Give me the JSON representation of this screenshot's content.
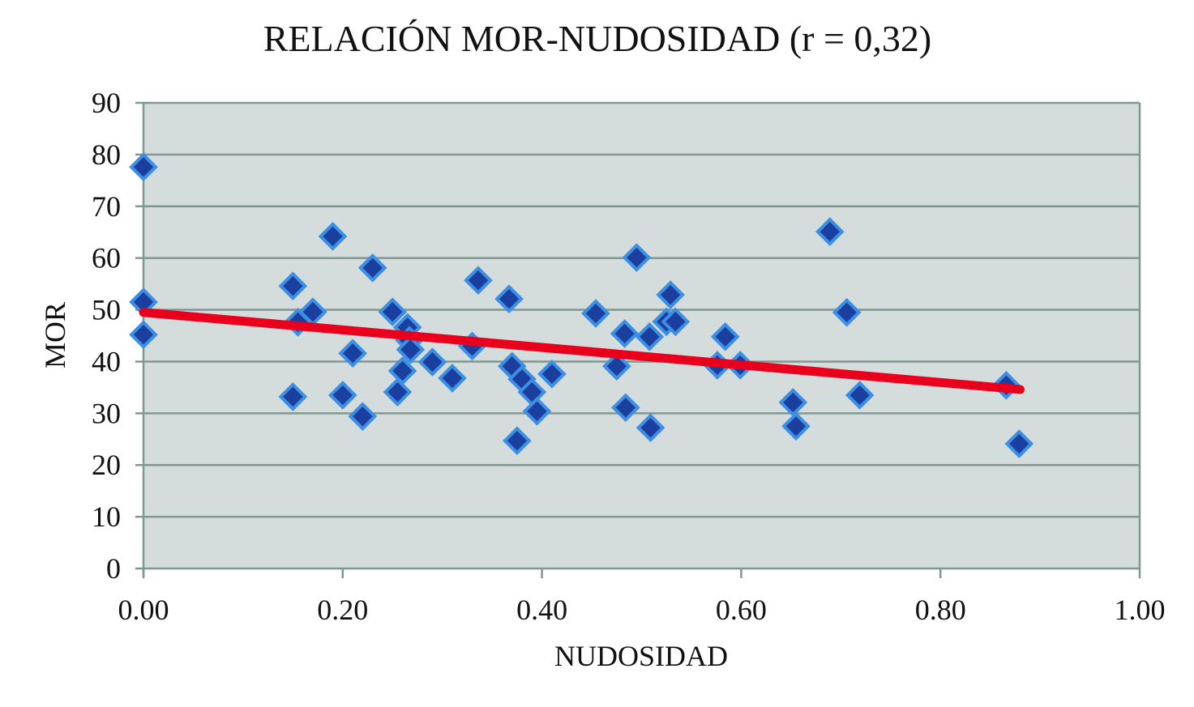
{
  "chart_data": {
    "type": "scatter",
    "title": "RELACIÓN MOR-NUDOSIDAD (r = 0,32)",
    "xlabel": "NUDOSIDAD",
    "ylabel": "MOR",
    "xlim": [
      0,
      1
    ],
    "ylim": [
      0,
      90
    ],
    "x_ticks": [
      0,
      0.2,
      0.4,
      0.6,
      0.8,
      1.0
    ],
    "x_tick_labels": [
      "0.00",
      "0.20",
      "0.40",
      "0.60",
      "0.80",
      "1.00"
    ],
    "y_ticks": [
      0,
      10,
      20,
      30,
      40,
      50,
      60,
      70,
      80,
      90
    ],
    "y_tick_labels": [
      "0",
      "10",
      "20",
      "30",
      "40",
      "50",
      "60",
      "70",
      "80",
      "90"
    ],
    "grid": true,
    "colors": {
      "plot_bg": "#d5dddc",
      "grid": "#7f9891",
      "marker": "#1a3f9e",
      "marker_edge": "#3d8fe3",
      "trend": "#e8001c"
    },
    "series": [
      {
        "name": "MOR",
        "points": [
          [
            0.0,
            77.6
          ],
          [
            0.0,
            51.5
          ],
          [
            0.0,
            45.2
          ],
          [
            0.15,
            54.6
          ],
          [
            0.155,
            47.6
          ],
          [
            0.17,
            49.6
          ],
          [
            0.15,
            33.2
          ],
          [
            0.19,
            64.2
          ],
          [
            0.21,
            41.6
          ],
          [
            0.2,
            33.5
          ],
          [
            0.22,
            29.4
          ],
          [
            0.23,
            58.1
          ],
          [
            0.25,
            49.6
          ],
          [
            0.265,
            46.6
          ],
          [
            0.267,
            44.1
          ],
          [
            0.268,
            42.3
          ],
          [
            0.26,
            38.2
          ],
          [
            0.255,
            34.1
          ],
          [
            0.29,
            39.9
          ],
          [
            0.31,
            36.8
          ],
          [
            0.33,
            43.0
          ],
          [
            0.336,
            55.7
          ],
          [
            0.367,
            52.1
          ],
          [
            0.37,
            39.1
          ],
          [
            0.38,
            36.6
          ],
          [
            0.39,
            34.1
          ],
          [
            0.395,
            30.4
          ],
          [
            0.375,
            24.7
          ],
          [
            0.41,
            37.6
          ],
          [
            0.454,
            49.3
          ],
          [
            0.475,
            39.1
          ],
          [
            0.483,
            45.4
          ],
          [
            0.484,
            31.1
          ],
          [
            0.495,
            60.1
          ],
          [
            0.508,
            44.8
          ],
          [
            0.509,
            27.2
          ],
          [
            0.525,
            47.7
          ],
          [
            0.529,
            52.9
          ],
          [
            0.534,
            47.7
          ],
          [
            0.576,
            39.3
          ],
          [
            0.584,
            44.8
          ],
          [
            0.599,
            39.3
          ],
          [
            0.652,
            32.1
          ],
          [
            0.655,
            27.5
          ],
          [
            0.689,
            65.1
          ],
          [
            0.706,
            49.5
          ],
          [
            0.719,
            33.5
          ],
          [
            0.866,
            35.4
          ],
          [
            0.879,
            24.1
          ]
        ]
      }
    ],
    "trendline": {
      "x": [
        0.0,
        0.88
      ],
      "y": [
        49.5,
        34.6
      ]
    }
  }
}
